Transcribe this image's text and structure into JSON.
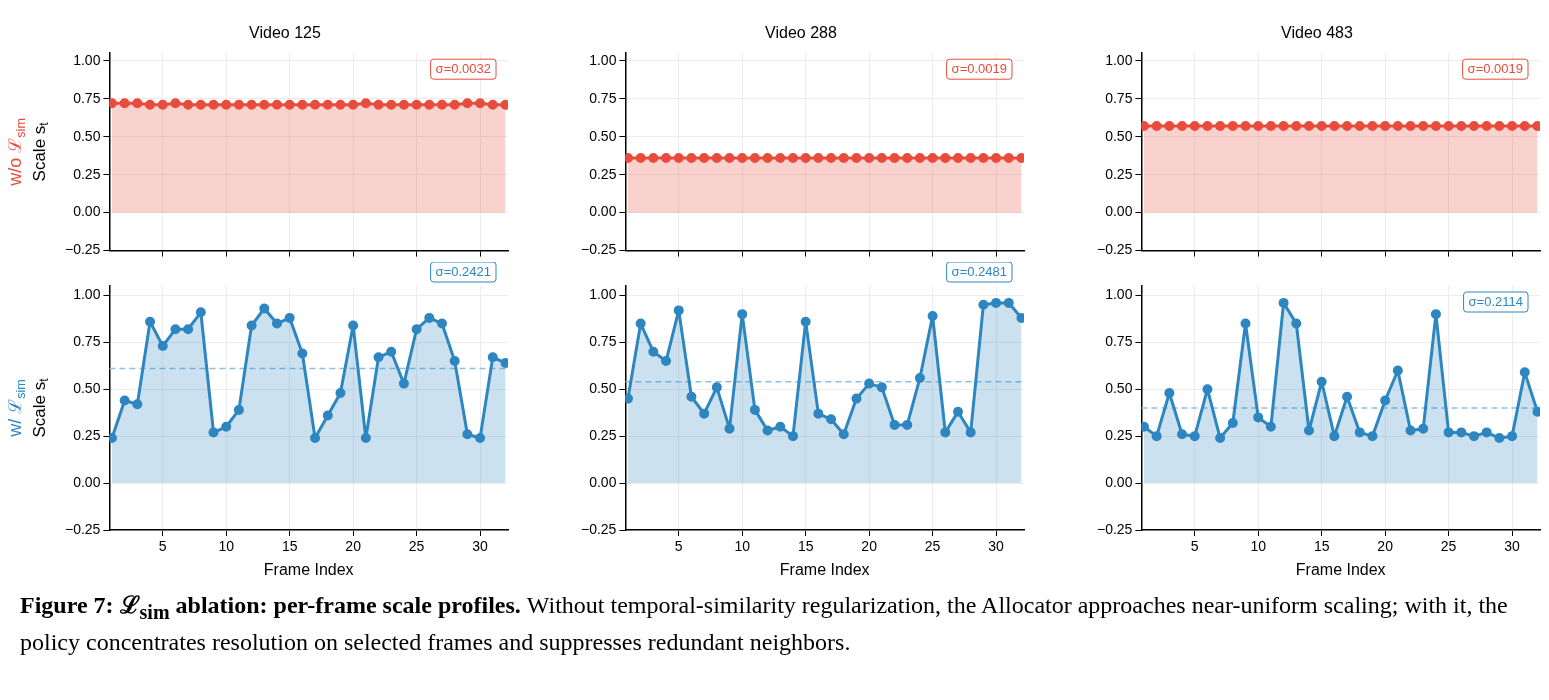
{
  "chart_data": [
    {
      "type": "area",
      "title": "Video 125",
      "ylabel": "Scale s$_{t}$",
      "x": [
        1,
        2,
        3,
        4,
        5,
        6,
        7,
        8,
        9,
        10,
        11,
        12,
        13,
        14,
        15,
        16,
        17,
        18,
        19,
        20,
        21,
        22,
        23,
        24,
        25,
        26,
        27,
        28,
        29,
        30,
        31,
        32
      ],
      "xlim": [
        0.8,
        32.2
      ],
      "xticks": [
        5,
        10,
        15,
        20,
        25,
        30
      ],
      "ylim": [
        -0.25,
        1.05
      ],
      "yticks": [
        {
          "value": -0.25,
          "label": "−0.25"
        },
        {
          "value": 0,
          "label": "0.00"
        },
        {
          "value": 0.25,
          "label": "0.25"
        },
        {
          "value": 0.5,
          "label": "0.50"
        },
        {
          "value": 0.75,
          "label": "0.75"
        },
        {
          "value": 1,
          "label": "1.00"
        }
      ],
      "grid": true,
      "marker": "circle",
      "tick_labels": "y",
      "series": [
        {
          "color": "#e74c3c",
          "values": [
            0.72,
            0.72,
            0.72,
            0.71,
            0.71,
            0.72,
            0.71,
            0.71,
            0.71,
            0.71,
            0.71,
            0.71,
            0.71,
            0.71,
            0.71,
            0.71,
            0.71,
            0.71,
            0.71,
            0.71,
            0.72,
            0.71,
            0.71,
            0.71,
            0.71,
            0.71,
            0.71,
            0.71,
            0.72,
            0.72,
            0.71,
            0.71
          ]
        }
      ],
      "annotations": [
        "σ=0.0032",
        "w/o ℒ$_{sim}$"
      ]
    },
    {
      "type": "area",
      "title": "Video 288",
      "x": [
        1,
        2,
        3,
        4,
        5,
        6,
        7,
        8,
        9,
        10,
        11,
        12,
        13,
        14,
        15,
        16,
        17,
        18,
        19,
        20,
        21,
        22,
        23,
        24,
        25,
        26,
        27,
        28,
        29,
        30,
        31,
        32
      ],
      "xlim": [
        0.8,
        32.2
      ],
      "xticks": [
        5,
        10,
        15,
        20,
        25,
        30
      ],
      "ylim": [
        -0.25,
        1.05
      ],
      "yticks": [
        {
          "value": -0.25,
          "label": "−0.25"
        },
        {
          "value": 0,
          "label": "0.00"
        },
        {
          "value": 0.25,
          "label": "0.25"
        },
        {
          "value": 0.5,
          "label": "0.50"
        },
        {
          "value": 0.75,
          "label": "0.75"
        },
        {
          "value": 1,
          "label": "1.00"
        }
      ],
      "grid": true,
      "marker": "circle",
      "tick_labels": "y",
      "series": [
        {
          "color": "#e74c3c",
          "values": [
            0.36,
            0.36,
            0.36,
            0.36,
            0.36,
            0.36,
            0.36,
            0.36,
            0.36,
            0.36,
            0.36,
            0.36,
            0.36,
            0.36,
            0.36,
            0.36,
            0.36,
            0.36,
            0.36,
            0.36,
            0.36,
            0.36,
            0.36,
            0.36,
            0.36,
            0.36,
            0.36,
            0.36,
            0.36,
            0.36,
            0.36,
            0.36
          ]
        }
      ],
      "annotations": [
        "σ=0.0019"
      ]
    },
    {
      "type": "area",
      "title": "Video 483",
      "x": [
        1,
        2,
        3,
        4,
        5,
        6,
        7,
        8,
        9,
        10,
        11,
        12,
        13,
        14,
        15,
        16,
        17,
        18,
        19,
        20,
        21,
        22,
        23,
        24,
        25,
        26,
        27,
        28,
        29,
        30,
        31,
        32
      ],
      "xlim": [
        0.8,
        32.2
      ],
      "xticks": [
        5,
        10,
        15,
        20,
        25,
        30
      ],
      "ylim": [
        -0.25,
        1.05
      ],
      "yticks": [
        {
          "value": -0.25,
          "label": "−0.25"
        },
        {
          "value": 0,
          "label": "0.00"
        },
        {
          "value": 0.25,
          "label": "0.25"
        },
        {
          "value": 0.5,
          "label": "0.50"
        },
        {
          "value": 0.75,
          "label": "0.75"
        },
        {
          "value": 1,
          "label": "1.00"
        }
      ],
      "grid": true,
      "marker": "circle",
      "tick_labels": "y",
      "series": [
        {
          "color": "#e74c3c",
          "values": [
            0.57,
            0.57,
            0.57,
            0.57,
            0.57,
            0.57,
            0.57,
            0.57,
            0.57,
            0.57,
            0.57,
            0.57,
            0.57,
            0.57,
            0.57,
            0.57,
            0.57,
            0.57,
            0.57,
            0.57,
            0.57,
            0.57,
            0.57,
            0.57,
            0.57,
            0.57,
            0.57,
            0.57,
            0.57,
            0.57,
            0.57,
            0.57
          ]
        }
      ],
      "annotations": [
        "σ=0.0019"
      ]
    },
    {
      "type": "area",
      "xlabel": "Frame Index",
      "ylabel": "Scale s$_{t}$",
      "x": [
        1,
        2,
        3,
        4,
        5,
        6,
        7,
        8,
        9,
        10,
        11,
        12,
        13,
        14,
        15,
        16,
        17,
        18,
        19,
        20,
        21,
        22,
        23,
        24,
        25,
        26,
        27,
        28,
        29,
        30,
        31,
        32
      ],
      "xlim": [
        0.8,
        32.2
      ],
      "xticks": [
        5,
        10,
        15,
        20,
        25,
        30
      ],
      "ylim": [
        -0.25,
        1.05
      ],
      "yticks": [
        {
          "value": -0.25,
          "label": "−0.25"
        },
        {
          "value": 0,
          "label": "0.00"
        },
        {
          "value": 0.25,
          "label": "0.25"
        },
        {
          "value": 0.5,
          "label": "0.50"
        },
        {
          "value": 0.75,
          "label": "0.75"
        },
        {
          "value": 1,
          "label": "1.00"
        }
      ],
      "grid": true,
      "marker": "circle",
      "series": [
        {
          "color": "#2e86c1",
          "values": [
            0.24,
            0.44,
            0.42,
            0.86,
            0.73,
            0.82,
            0.82,
            0.91,
            0.27,
            0.3,
            0.39,
            0.84,
            0.93,
            0.85,
            0.88,
            0.69,
            0.24,
            0.36,
            0.48,
            0.84,
            0.24,
            0.67,
            0.7,
            0.53,
            0.82,
            0.88,
            0.85,
            0.65,
            0.26,
            0.24,
            0.67,
            0.64
          ]
        }
      ],
      "ref_lines": [
        {
          "axis": "y",
          "value": 0.61,
          "color": "#8fbfe0",
          "line_style": "dashed"
        }
      ],
      "annotations": [
        "σ=0.2421",
        "w/ ℒ$_{sim}$",
        "Figure 7: ℒ$_{sim}$ ablation: per-frame scale profiles.",
        "Without temporal-similarity regularization, the Allocator approaches near-uniform scaling; with it, the policy concentrates resolution on selected frames and suppresses redundant neighbors."
      ]
    },
    {
      "type": "area",
      "xlabel": "Frame Index",
      "x": [
        1,
        2,
        3,
        4,
        5,
        6,
        7,
        8,
        9,
        10,
        11,
        12,
        13,
        14,
        15,
        16,
        17,
        18,
        19,
        20,
        21,
        22,
        23,
        24,
        25,
        26,
        27,
        28,
        29,
        30,
        31,
        32
      ],
      "xlim": [
        0.8,
        32.2
      ],
      "xticks": [
        5,
        10,
        15,
        20,
        25,
        30
      ],
      "ylim": [
        -0.25,
        1.05
      ],
      "yticks": [
        {
          "value": -0.25,
          "label": "−0.25"
        },
        {
          "value": 0,
          "label": "0.00"
        },
        {
          "value": 0.25,
          "label": "0.25"
        },
        {
          "value": 0.5,
          "label": "0.50"
        },
        {
          "value": 0.75,
          "label": "0.75"
        },
        {
          "value": 1,
          "label": "1.00"
        }
      ],
      "grid": true,
      "marker": "circle",
      "series": [
        {
          "color": "#2e86c1",
          "values": [
            0.45,
            0.85,
            0.7,
            0.65,
            0.92,
            0.46,
            0.37,
            0.51,
            0.29,
            0.9,
            0.39,
            0.28,
            0.3,
            0.25,
            0.86,
            0.37,
            0.34,
            0.26,
            0.45,
            0.53,
            0.51,
            0.31,
            0.31,
            0.56,
            0.89,
            0.27,
            0.38,
            0.27,
            0.95,
            0.96,
            0.96,
            0.88
          ]
        }
      ],
      "ref_lines": [
        {
          "axis": "y",
          "value": 0.54,
          "color": "#8fbfe0",
          "line_style": "dashed"
        }
      ],
      "annotations": [
        "σ=0.2481"
      ]
    },
    {
      "type": "area",
      "xlabel": "Frame Index",
      "x": [
        1,
        2,
        3,
        4,
        5,
        6,
        7,
        8,
        9,
        10,
        11,
        12,
        13,
        14,
        15,
        16,
        17,
        18,
        19,
        20,
        21,
        22,
        23,
        24,
        25,
        26,
        27,
        28,
        29,
        30,
        31,
        32
      ],
      "xlim": [
        0.8,
        32.2
      ],
      "xticks": [
        5,
        10,
        15,
        20,
        25,
        30
      ],
      "ylim": [
        -0.25,
        1.05
      ],
      "yticks": [
        {
          "value": -0.25,
          "label": "−0.25"
        },
        {
          "value": 0,
          "label": "0.00"
        },
        {
          "value": 0.25,
          "label": "0.25"
        },
        {
          "value": 0.5,
          "label": "0.50"
        },
        {
          "value": 0.75,
          "label": "0.75"
        },
        {
          "value": 1,
          "label": "1.00"
        }
      ],
      "grid": true,
      "marker": "circle",
      "series": [
        {
          "color": "#2e86c1",
          "values": [
            0.3,
            0.25,
            0.48,
            0.26,
            0.25,
            0.5,
            0.24,
            0.32,
            0.85,
            0.35,
            0.3,
            0.96,
            0.85,
            0.28,
            0.54,
            0.25,
            0.46,
            0.27,
            0.25,
            0.44,
            0.6,
            0.28,
            0.29,
            0.9,
            0.27,
            0.27,
            0.25,
            0.27,
            0.24,
            0.25,
            0.59,
            0.38
          ]
        }
      ],
      "ref_lines": [
        {
          "axis": "y",
          "value": 0.4,
          "color": "#8fbfe0",
          "line_style": "dashed"
        }
      ],
      "annotations": [
        "σ=0.2114"
      ]
    }
  ]
}
